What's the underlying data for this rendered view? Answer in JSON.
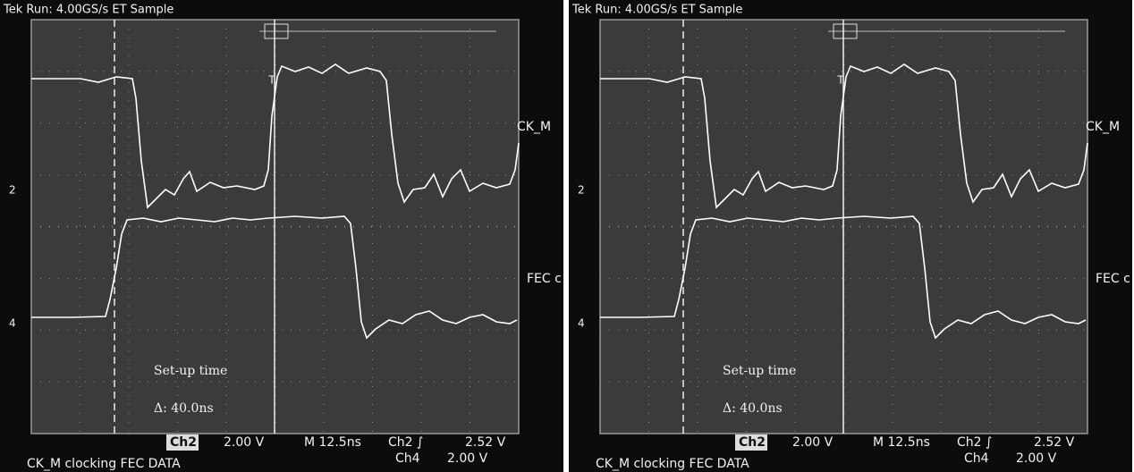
{
  "panels": [
    {
      "header": "Tek Run: 4.00GS/s ET Sample",
      "ch2_marker": "2",
      "ch4_marker": "4",
      "trigger_marker": "T",
      "ref_label_top": "CK_M",
      "ref_label_bottom": "FEC c",
      "cursor_title": "Set-up time",
      "cursor_delta": "Δ: 40.0ns",
      "ch2_name": "Ch2",
      "ch2_scale": "2.00 V",
      "timebase": "M 12.5ns",
      "trigger_source": "Ch2 ∫",
      "trigger_level": "2.52 V",
      "ch4_name": "Ch4",
      "ch4_scale": "2.00 V",
      "caption": "CK_M  clocking FEC DATA"
    },
    {
      "header": "Tek Run: 4.00GS/s ET Sample",
      "ch2_marker": "2",
      "ch4_marker": "4",
      "trigger_marker": "T",
      "ref_label_top": "CK_M",
      "ref_label_bottom": "FEC c",
      "cursor_title": "Set-up time",
      "cursor_delta": "Δ: 40.0ns",
      "ch2_name": "Ch2",
      "ch2_scale": "2.00 V",
      "timebase": "M 12.5ns",
      "trigger_source": "Ch2 ∫",
      "trigger_level": "2.52 V",
      "ch4_name": "Ch4",
      "ch4_scale": "2.00 V",
      "caption": "CK_M  clocking FEC DATA"
    }
  ]
}
